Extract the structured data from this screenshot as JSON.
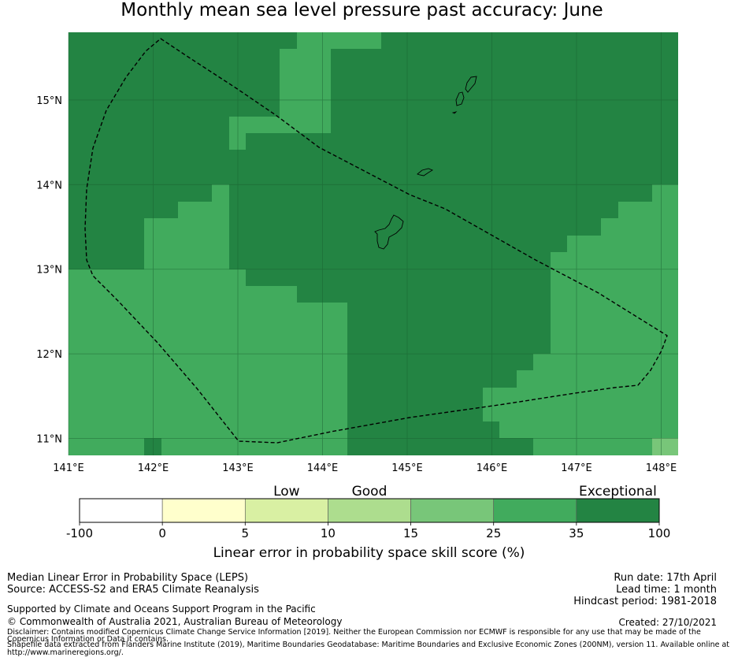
{
  "title": "Monthly mean sea level pressure past accuracy: June",
  "map": {
    "lon_range": [
      141,
      148.2
    ],
    "lat_range": [
      10.8,
      15.8
    ],
    "x_ticks": [
      "141°E",
      "142°E",
      "143°E",
      "144°E",
      "145°E",
      "146°E",
      "147°E",
      "148°E"
    ],
    "x_tick_values": [
      141,
      142,
      143,
      144,
      145,
      146,
      147,
      148
    ],
    "y_ticks": [
      "15°N",
      "14°N",
      "13°N",
      "12°N",
      "11°N"
    ],
    "y_tick_values": [
      15,
      14,
      13,
      12,
      11
    ],
    "gridlines": true,
    "eez_boundary_style": "dashed black line",
    "land": [
      "Guam",
      "Rota",
      "Tinian",
      "Saipan"
    ]
  },
  "colorbar": {
    "categories": [
      {
        "label": "Low",
        "at": 2.5
      },
      {
        "label": "Good",
        "at": 3.5
      },
      {
        "label": "Exceptional",
        "at": 6.5
      }
    ],
    "bins": [
      {
        "from": -100,
        "to": 0,
        "color": "#ffffff"
      },
      {
        "from": 0,
        "to": 5,
        "color": "#ffffcc"
      },
      {
        "from": 5,
        "to": 10,
        "color": "#d9f0a3"
      },
      {
        "from": 10,
        "to": 15,
        "color": "#addd8e"
      },
      {
        "from": 15,
        "to": 25,
        "color": "#78c679"
      },
      {
        "from": 25,
        "to": 35,
        "color": "#41ab5d"
      },
      {
        "from": 35,
        "to": 100,
        "color": "#238443"
      }
    ],
    "tick_labels": [
      "-100",
      "0",
      "5",
      "10",
      "15",
      "25",
      "35",
      "100"
    ],
    "label": "Linear error in probability space skill score (%)"
  },
  "info_left": {
    "line1": "Median Linear Error in Probability Space (LEPS)",
    "line2": "Source: ACCESS-S2 and ERA5 Climate Reanalysis",
    "line3": "Supported by Climate and Oceans Support Program in the Pacific",
    "line4": "© Commonwealth of Australia 2021, Australian Bureau of Meteorology"
  },
  "info_right": {
    "run_date": "Run date: 17th April",
    "lead_time": "Lead time: 1 month",
    "hindcast": "Hindcast period: 1981-2018",
    "created": "Created: 27/10/2021"
  },
  "disclaimer": {
    "line1": "Disclaimer: Contains modified Copernicus Climate Change Service Information [2019]. Neither the European Commission nor ECMWF is responsible for any use that may be made of the",
    "line2": "Copernicus Information or Data it contains.",
    "line3": "Shapefile data extracted from Flanders Marine Institute (2019), Maritime Boundaries Geodatabase: Maritime Boundaries and Exclusive Economic Zones (200NM), version 11. Available online at",
    "line4": "http://www.marineregions.org/."
  }
}
